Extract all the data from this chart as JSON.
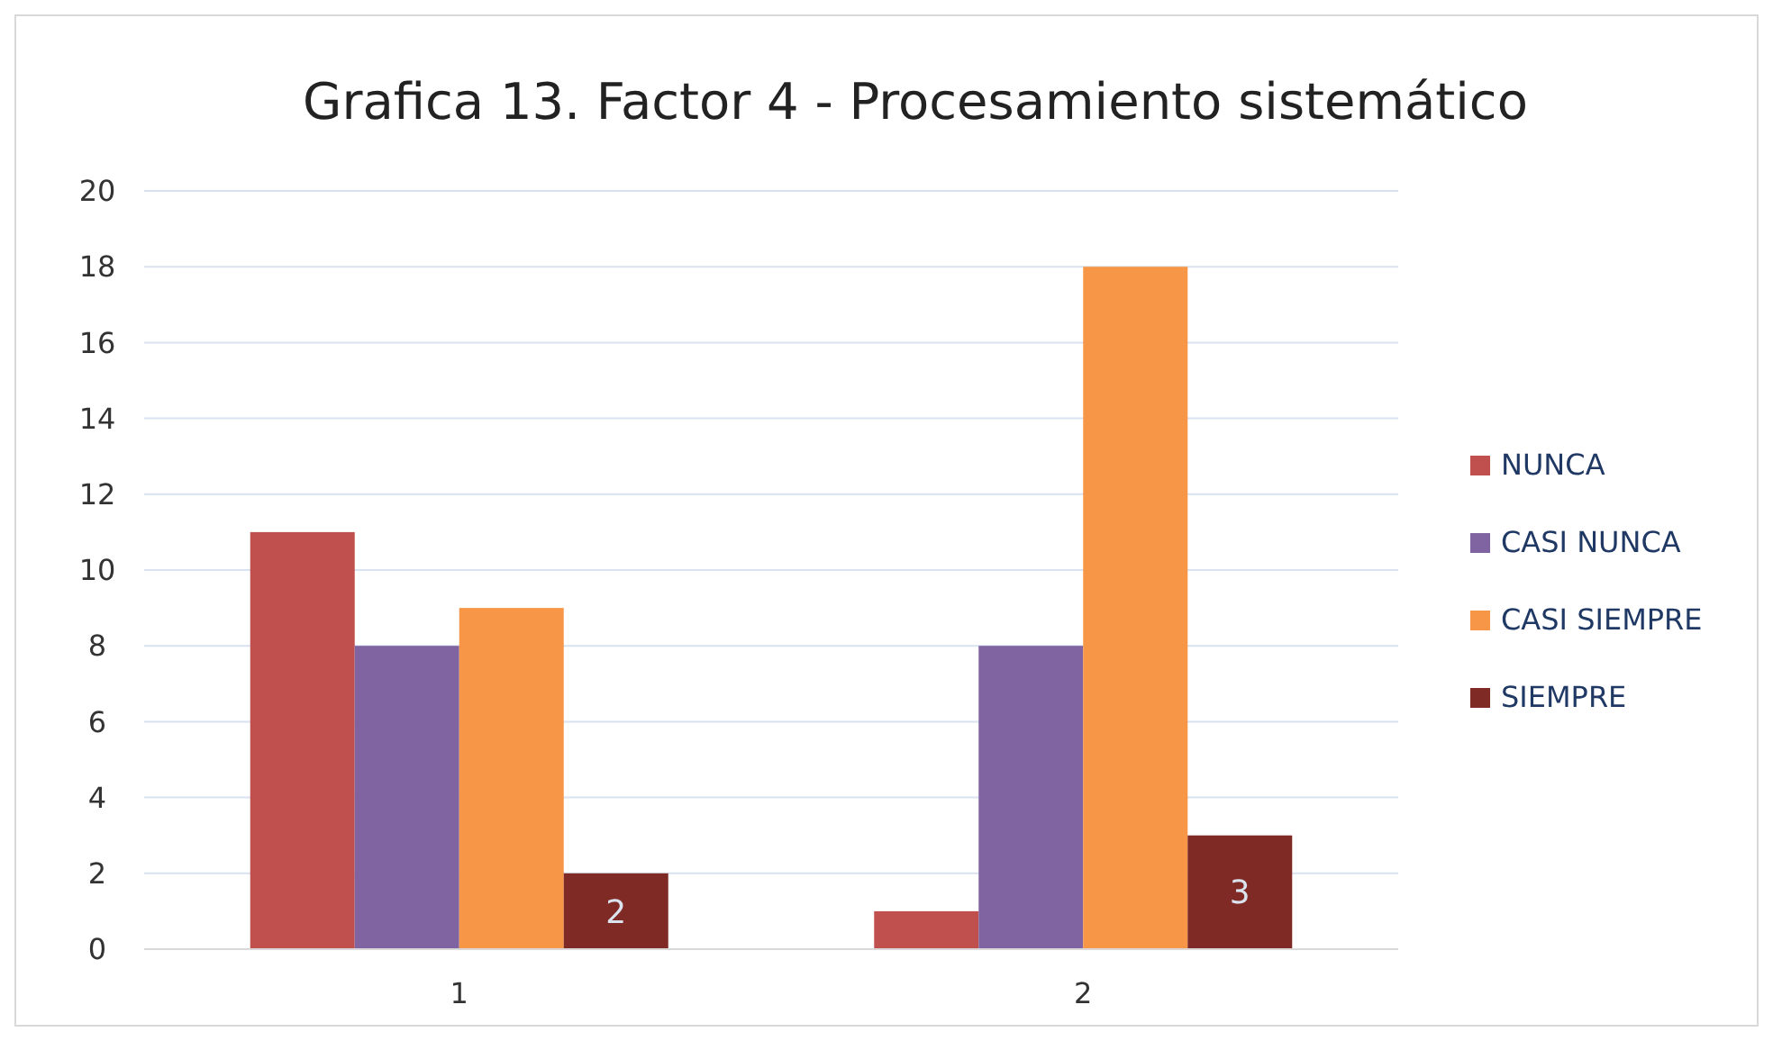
{
  "chart_data": {
    "type": "bar",
    "title": "Grafica 13. Factor 4 - Procesamiento sistemático",
    "categories": [
      "1",
      "2"
    ],
    "series": [
      {
        "name": "NUNCA",
        "color": "#c0504d",
        "values": [
          11,
          1
        ]
      },
      {
        "name": "CASI NUNCA",
        "color": "#8064a2",
        "values": [
          8,
          8
        ]
      },
      {
        "name": "CASI SIEMPRE",
        "color": "#f79646",
        "values": [
          9,
          18
        ]
      },
      {
        "name": "SIEMPRE",
        "color": "#7f2a24",
        "values": [
          2,
          3
        ],
        "value_labels": [
          "2",
          "3"
        ]
      }
    ],
    "ylim": [
      0,
      20
    ],
    "yticks": [
      0,
      2,
      4,
      6,
      8,
      10,
      12,
      14,
      16,
      18,
      20
    ],
    "grid": "y",
    "legend": "right"
  }
}
